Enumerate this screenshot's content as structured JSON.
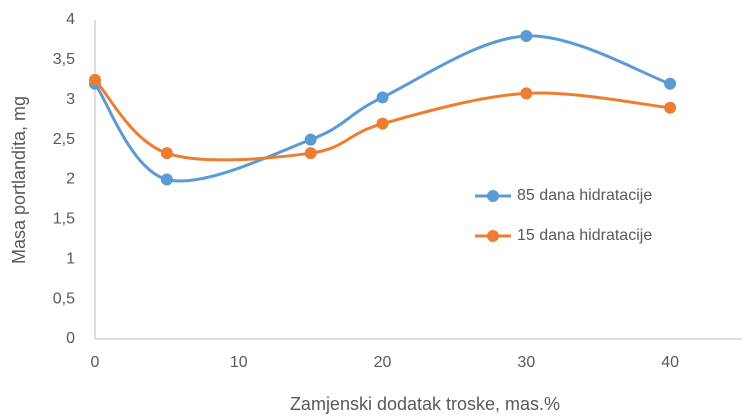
{
  "chart_data": {
    "type": "line",
    "xlabel": "Zamjenski dodatak troske, mas.%",
    "ylabel": "Masa portlandita, mg",
    "x": [
      0,
      5,
      15,
      20,
      30,
      40
    ],
    "series": [
      {
        "name": "85 dana hidratacije",
        "color": "#5b9bd5",
        "values": [
          3.2,
          2.0,
          2.5,
          3.03,
          3.8,
          3.2
        ]
      },
      {
        "name": "15 dana hidratacije",
        "color": "#ed7d31",
        "values": [
          3.25,
          2.33,
          2.33,
          2.7,
          3.08,
          2.9
        ]
      }
    ],
    "xlim": [
      0,
      45
    ],
    "xticks": [
      0,
      10,
      20,
      30,
      40
    ],
    "ylim": [
      0,
      4
    ],
    "yticks": [
      0,
      {
        "value": 0.5,
        "label": "0,5"
      },
      1,
      {
        "value": 1.5,
        "label": "1,5"
      },
      2,
      {
        "value": 2.5,
        "label": "2,5"
      },
      3,
      {
        "value": 3.5,
        "label": "3,5"
      },
      4
    ],
    "grid": false,
    "smooth": true,
    "legend": "right"
  }
}
